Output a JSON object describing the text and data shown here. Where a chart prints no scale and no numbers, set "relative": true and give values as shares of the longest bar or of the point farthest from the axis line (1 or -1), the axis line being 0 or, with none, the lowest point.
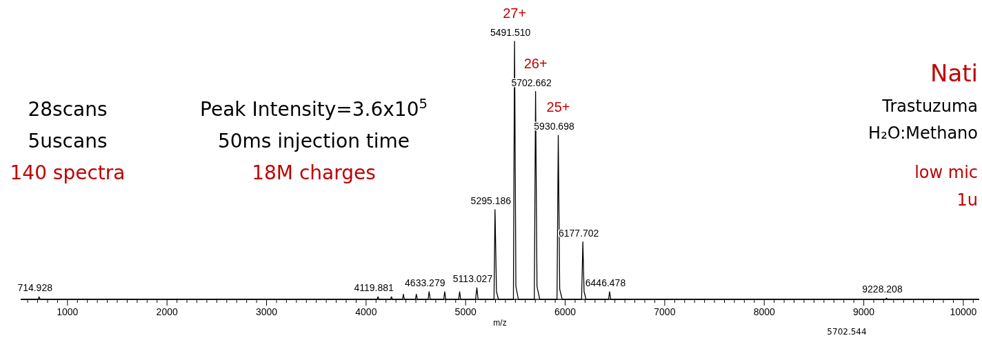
{
  "chart_data": {
    "type": "line",
    "relative": true,
    "xlabel": "m/z",
    "xlim": [
      530,
      10160
    ],
    "xticks": [
      {
        "value": 600,
        "label": null
      },
      {
        "value": 700,
        "label": null
      },
      {
        "value": 800,
        "label": null
      },
      {
        "value": 900,
        "label": null
      },
      1000,
      {
        "value": 1100,
        "label": null
      },
      {
        "value": 1200,
        "label": null
      },
      {
        "value": 1300,
        "label": null
      },
      {
        "value": 1400,
        "label": null
      },
      {
        "value": 1500,
        "label": null
      },
      {
        "value": 1600,
        "label": null
      },
      {
        "value": 1700,
        "label": null
      },
      {
        "value": 1800,
        "label": null
      },
      {
        "value": 1900,
        "label": null
      },
      2000,
      {
        "value": 2100,
        "label": null
      },
      {
        "value": 2200,
        "label": null
      },
      {
        "value": 2300,
        "label": null
      },
      {
        "value": 2400,
        "label": null
      },
      {
        "value": 2500,
        "label": null
      },
      {
        "value": 2600,
        "label": null
      },
      {
        "value": 2700,
        "label": null
      },
      {
        "value": 2800,
        "label": null
      },
      {
        "value": 2900,
        "label": null
      },
      3000,
      {
        "value": 3100,
        "label": null
      },
      {
        "value": 3200,
        "label": null
      },
      {
        "value": 3300,
        "label": null
      },
      {
        "value": 3400,
        "label": null
      },
      {
        "value": 3500,
        "label": null
      },
      {
        "value": 3600,
        "label": null
      },
      {
        "value": 3700,
        "label": null
      },
      {
        "value": 3800,
        "label": null
      },
      {
        "value": 3900,
        "label": null
      },
      4000,
      {
        "value": 4100,
        "label": null
      },
      {
        "value": 4200,
        "label": null
      },
      {
        "value": 4300,
        "label": null
      },
      {
        "value": 4400,
        "label": null
      },
      {
        "value": 4500,
        "label": null
      },
      {
        "value": 4600,
        "label": null
      },
      {
        "value": 4700,
        "label": null
      },
      {
        "value": 4800,
        "label": null
      },
      {
        "value": 4900,
        "label": null
      },
      5000,
      {
        "value": 5100,
        "label": null
      },
      {
        "value": 5200,
        "label": null
      },
      {
        "value": 5300,
        "label": null
      },
      {
        "value": 5400,
        "label": null
      },
      {
        "value": 5500,
        "label": null
      },
      {
        "value": 5600,
        "label": null
      },
      {
        "value": 5700,
        "label": null
      },
      {
        "value": 5800,
        "label": null
      },
      {
        "value": 5900,
        "label": null
      },
      6000,
      {
        "value": 6100,
        "label": null
      },
      {
        "value": 6200,
        "label": null
      },
      {
        "value": 6300,
        "label": null
      },
      {
        "value": 6400,
        "label": null
      },
      {
        "value": 6500,
        "label": null
      },
      {
        "value": 6600,
        "label": null
      },
      {
        "value": 6700,
        "label": null
      },
      {
        "value": 6800,
        "label": null
      },
      {
        "value": 6900,
        "label": null
      },
      7000,
      {
        "value": 7100,
        "label": null
      },
      {
        "value": 7200,
        "label": null
      },
      {
        "value": 7300,
        "label": null
      },
      {
        "value": 7400,
        "label": null
      },
      {
        "value": 7500,
        "label": null
      },
      {
        "value": 7600,
        "label": null
      },
      {
        "value": 7700,
        "label": null
      },
      {
        "value": 7800,
        "label": null
      },
      {
        "value": 7900,
        "label": null
      },
      8000,
      {
        "value": 8100,
        "label": null
      },
      {
        "value": 8200,
        "label": null
      },
      {
        "value": 8300,
        "label": null
      },
      {
        "value": 8400,
        "label": null
      },
      {
        "value": 8500,
        "label": null
      },
      {
        "value": 8600,
        "label": null
      },
      {
        "value": 8700,
        "label": null
      },
      {
        "value": 8800,
        "label": null
      },
      {
        "value": 8900,
        "label": null
      },
      9000,
      {
        "value": 9100,
        "label": null
      },
      {
        "value": 9200,
        "label": null
      },
      {
        "value": 9300,
        "label": null
      },
      {
        "value": 9400,
        "label": null
      },
      {
        "value": 9500,
        "label": null
      },
      {
        "value": 9600,
        "label": null
      },
      {
        "value": 9700,
        "label": null
      },
      {
        "value": 9800,
        "label": null
      },
      {
        "value": 9900,
        "label": null
      },
      10000,
      {
        "value": 10100,
        "label": null
      }
    ],
    "series": [
      {
        "color": "#000000",
        "x": [
          530,
          705,
          714.928,
          725,
          4110,
          4119.881,
          4130,
          4245,
          4255,
          4265,
          4365,
          4375,
          4385,
          4495,
          4505,
          4515,
          4623,
          4633.279,
          4645,
          4780,
          4790,
          4800,
          4930,
          4940,
          4950,
          5100,
          5113.027,
          5125,
          5285,
          5295.186,
          5310,
          5330,
          5480,
          5491.51,
          5505,
          5530,
          5690,
          5702.662,
          5717,
          5745,
          5918,
          5930.698,
          5945,
          5970,
          6165,
          6177.702,
          6190,
          6210,
          6436,
          6446.478,
          6458,
          9218,
          9228.208,
          9238,
          10160
        ],
        "values": [
          0,
          0,
          0.01,
          0,
          0,
          0.01,
          0,
          0,
          0.01,
          0,
          0,
          0.02,
          0,
          0,
          0.02,
          0,
          0,
          0.03,
          0,
          0,
          0.03,
          0,
          0,
          0.03,
          0,
          0,
          0.045,
          0,
          0,
          0.348,
          0.03,
          0,
          0,
          1,
          0.05,
          0,
          0,
          0.806,
          0.05,
          0,
          0,
          0.636,
          0.04,
          0,
          0,
          0.223,
          0.03,
          0,
          0,
          0.03,
          0,
          0,
          0.005,
          0,
          0
        ]
      }
    ],
    "annotations": [
      {
        "text": "714.928",
        "x": 714.928,
        "y": 0.01
      },
      {
        "text": "4119.881",
        "x": 4119.881,
        "y": 0.01
      },
      {
        "text": "4633.279",
        "x": 4633.279,
        "y": 0.03
      },
      {
        "text": "5113.027",
        "x": 5113.027,
        "y": 0.045
      },
      {
        "text": "5295.186",
        "x": 5295.186,
        "y": 0.348
      },
      {
        "text": "5491.510",
        "x": 5491.51,
        "y": 1
      },
      {
        "text": "27+",
        "x": 5491.51,
        "y": 1
      },
      {
        "text": "5702.662",
        "x": 5702.662,
        "y": 0.806
      },
      {
        "text": "26+",
        "x": 5702.662,
        "y": 0.806
      },
      {
        "text": "5930.698",
        "x": 5930.698,
        "y": 0.636
      },
      {
        "text": "25+",
        "x": 5930.698,
        "y": 0.636
      },
      {
        "text": "6177.702",
        "x": 6177.702,
        "y": 0.223
      },
      {
        "text": "6446.478",
        "x": 6446.478,
        "y": 0.03
      },
      {
        "text": "9228.208",
        "x": 9228.208,
        "y": 0.005
      },
      "5702.544",
      "28scans",
      "5uscans",
      "140 spectra",
      "Peak Intensity=3.6x10$^{5}$",
      "50ms injection time",
      "18M charges",
      "Nati",
      "Trastuzuma",
      "H₂O:Methano",
      "low mic",
      "1u"
    ]
  }
}
